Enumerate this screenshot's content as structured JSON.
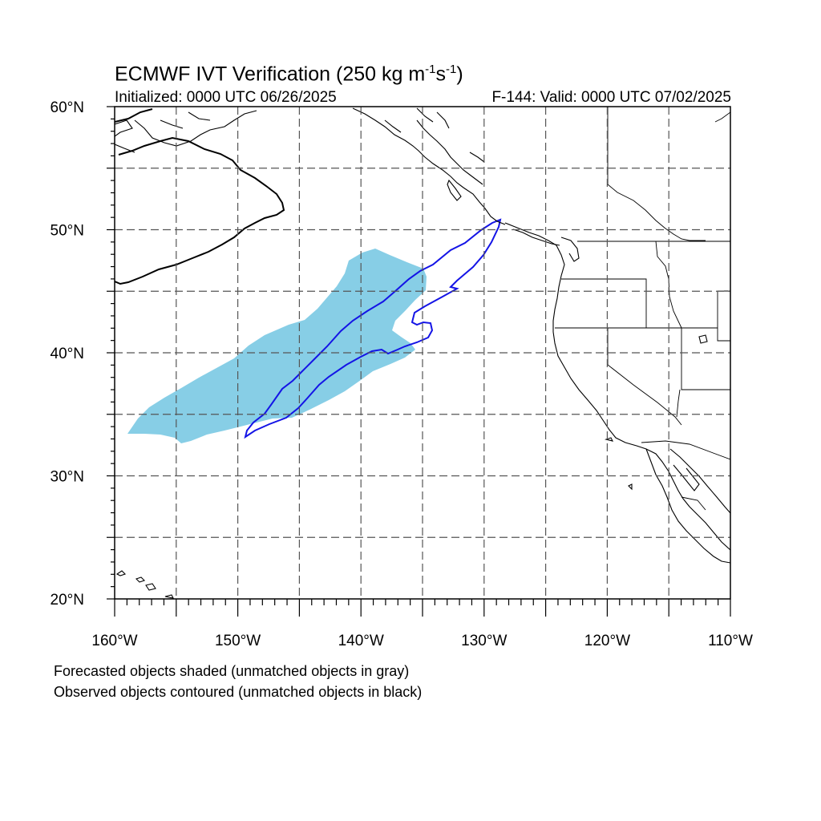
{
  "title": {
    "main": "ECMWF IVT Verification (250 kg m",
    "exp1": "-1",
    "mid": "s",
    "exp2": "-1",
    "end": ")"
  },
  "subtitle": {
    "initialized": "Initialized: 0000 UTC 06/26/2025",
    "valid": "F-144: Valid: 0000 UTC 07/02/2025"
  },
  "map": {
    "lon_range": [
      -160,
      -110
    ],
    "lat_range": [
      20,
      60
    ],
    "x_tick_labels": [
      "160°W",
      "150°W",
      "140°W",
      "130°W",
      "120°W",
      "110°W"
    ],
    "y_tick_labels": [
      "60°N",
      "50°N",
      "40°N",
      "30°N",
      "20°N"
    ],
    "forecast_fill_color": "#87CEE6",
    "observed_contour_color": "#1010E0",
    "coastline_color": "#000000"
  },
  "notes": {
    "line1": "Forecasted objects shaded (unmatched objects in gray)",
    "line2": "Observed objects contoured (unmatched objects in black)"
  }
}
